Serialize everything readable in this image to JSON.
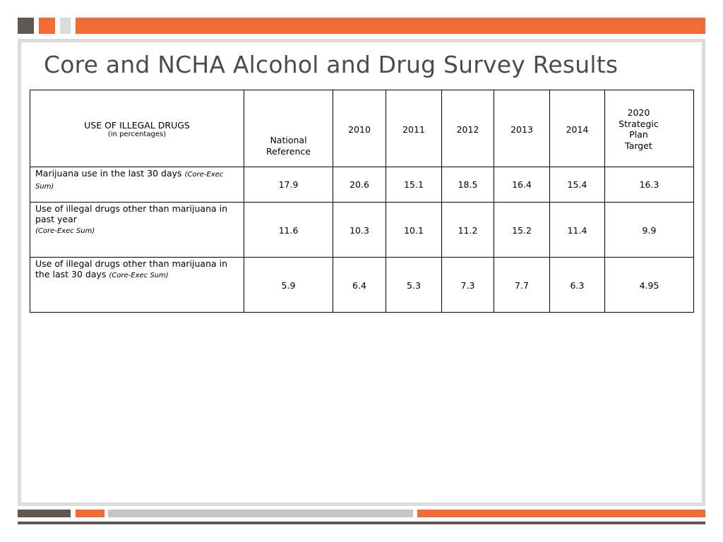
{
  "slide": {
    "title": "Core and NCHA Alcohol and Drug Survey Results"
  },
  "table": {
    "header": {
      "main_label": "USE OF ILLEGAL DRUGS",
      "sub_label": "(in percentages)",
      "national_reference_line1": "National",
      "national_reference_line2": "Reference",
      "years": [
        "2010",
        "2011",
        "2012",
        "2013",
        "2014"
      ],
      "target_lines": [
        "2020",
        "Strategic",
        "Plan",
        "Target"
      ]
    },
    "rows": [
      {
        "label": "Marijuana use in the last 30 days",
        "source": "(Core-Exec Sum)",
        "values": [
          "17.9",
          "20.6",
          "15.1",
          "18.5",
          "16.4",
          "15.4",
          "16.3"
        ]
      },
      {
        "label": "Use of illegal drugs other than marijuana in past year",
        "source": "(Core-Exec Sum)",
        "values": [
          "11.6",
          "10.3",
          "10.1",
          "11.2",
          "15.2",
          "11.4",
          "9.9"
        ]
      },
      {
        "label": "Use of illegal drugs other than marijuana in the last 30 days",
        "source": "(Core-Exec Sum)",
        "values": [
          "5.9",
          "6.4",
          "5.3",
          "7.3",
          "7.7",
          "6.3",
          "4.95"
        ]
      }
    ]
  }
}
